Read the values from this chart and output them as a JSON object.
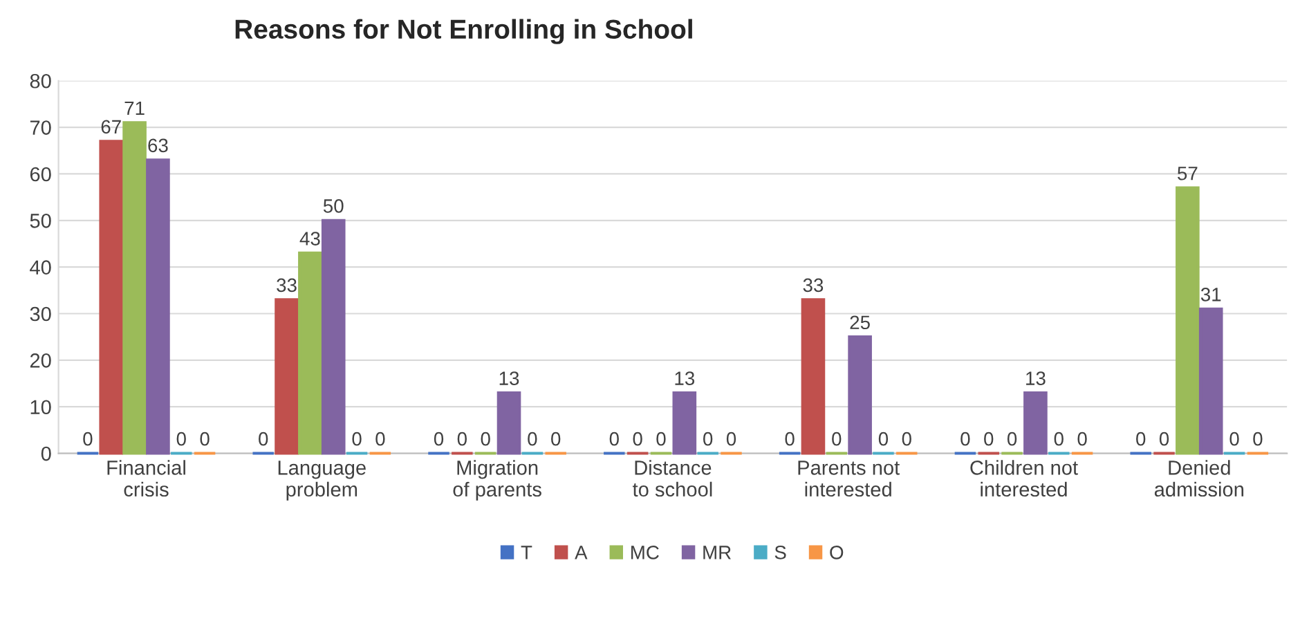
{
  "chart_data": {
    "type": "bar",
    "title": "Reasons for Not Enrolling in School",
    "categories": [
      "Financial crisis",
      "Language problem",
      "Migration of parents",
      "Distance to school",
      "Parents not interested",
      "Children not interested",
      "Denied admission"
    ],
    "series": [
      {
        "name": "T",
        "color": "#4472c4",
        "values": [
          0,
          0,
          0,
          0,
          0,
          0,
          0
        ]
      },
      {
        "name": "A",
        "color": "#c0504d",
        "values": [
          67,
          33,
          0,
          0,
          33,
          0,
          0
        ]
      },
      {
        "name": "MC",
        "color": "#9bbb59",
        "values": [
          71,
          43,
          0,
          0,
          0,
          0,
          57
        ]
      },
      {
        "name": "MR",
        "color": "#8064a2",
        "values": [
          63,
          50,
          13,
          13,
          25,
          13,
          31
        ]
      },
      {
        "name": "S",
        "color": "#4bacc6",
        "values": [
          0,
          0,
          0,
          0,
          0,
          0,
          0
        ]
      },
      {
        "name": "O",
        "color": "#f79646",
        "values": [
          0,
          0,
          0,
          0,
          0,
          0,
          0
        ]
      }
    ],
    "ylim": [
      0,
      80
    ],
    "yticks": [
      0,
      10,
      20,
      30,
      40,
      50,
      60,
      70,
      80
    ],
    "grid": "y",
    "legend": "bottom",
    "data_labels": true
  }
}
